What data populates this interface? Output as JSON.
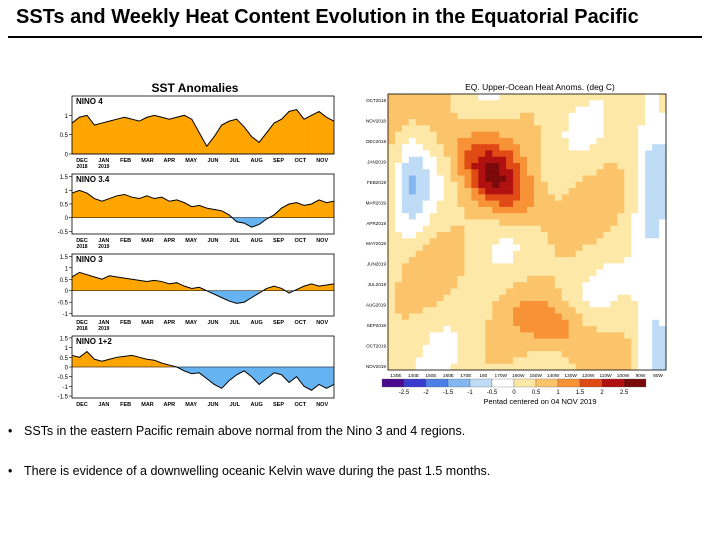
{
  "title": "SSTs and Weekly Heat Content Evolution in the Equatorial Pacific",
  "bullets": [
    "SSTs in the eastern Pacific remain above normal from the Nino 3 and 4 regions.",
    "There is evidence of a downwelling oceanic Kelvin wave during the past 1.5 months."
  ],
  "bullet_symbol": "•",
  "colors": {
    "positive_fill": "#ffa500",
    "negative_fill": "#66b3f2",
    "line": "#000000"
  },
  "chart_data": [
    {
      "type": "area",
      "title": "SST Anomalies",
      "months": [
        "DEC",
        "JAN",
        "FEB",
        "MAR",
        "APR",
        "MAY",
        "JUN",
        "JUL",
        "AUG",
        "SEP",
        "OCT",
        "NOV"
      ],
      "years": [
        "2018",
        "2019"
      ],
      "panels": [
        {
          "name": "NINO 4",
          "yticks": [
            "1",
            "0.5",
            "0"
          ],
          "ylim": [
            0,
            1.5
          ],
          "ytick_values": [
            1,
            0.5,
            0
          ],
          "values": [
            0.8,
            0.95,
            1.0,
            0.75,
            0.8,
            0.85,
            0.9,
            0.95,
            0.9,
            0.85,
            0.95,
            1.0,
            0.95,
            0.9,
            0.95,
            1.0,
            0.9,
            0.55,
            0.2,
            0.45,
            0.75,
            0.85,
            0.9,
            0.7,
            0.45,
            0.3,
            0.55,
            0.8,
            0.9,
            1.1,
            1.15,
            0.9,
            1.0,
            1.1,
            0.95,
            0.85
          ]
        },
        {
          "name": "NINO 3.4",
          "yticks": [
            "1.5",
            "1",
            "0.5",
            "0",
            "-0.5"
          ],
          "ylim": [
            -0.6,
            1.6
          ],
          "ytick_values": [
            1.5,
            1,
            0.5,
            0,
            -0.5
          ],
          "values": [
            0.9,
            1.0,
            0.9,
            0.7,
            0.6,
            0.7,
            0.8,
            0.85,
            0.75,
            0.7,
            0.8,
            0.7,
            0.75,
            0.6,
            0.65,
            0.55,
            0.4,
            0.45,
            0.35,
            0.3,
            0.25,
            0.1,
            -0.15,
            -0.2,
            -0.35,
            -0.25,
            -0.05,
            0.1,
            0.35,
            0.5,
            0.55,
            0.45,
            0.5,
            0.65,
            0.55,
            0.6
          ]
        },
        {
          "name": "NINO 3",
          "yticks": [
            "1.5",
            "1",
            "0.5",
            "0",
            "-0.5",
            "-1"
          ],
          "ylim": [
            -1.1,
            1.6
          ],
          "ytick_values": [
            1.5,
            1,
            0.5,
            0,
            -0.5,
            -1
          ],
          "values": [
            0.6,
            0.8,
            0.7,
            0.6,
            0.5,
            0.65,
            0.6,
            0.55,
            0.5,
            0.45,
            0.4,
            0.45,
            0.4,
            0.3,
            0.35,
            0.2,
            0.1,
            0.15,
            0.0,
            -0.15,
            -0.3,
            -0.45,
            -0.55,
            -0.5,
            -0.3,
            -0.1,
            0.1,
            0.2,
            0.1,
            -0.1,
            0.05,
            0.2,
            0.3,
            0.2,
            0.25,
            0.3
          ]
        },
        {
          "name": "NINO 1+2",
          "yticks": [
            "1.5",
            "1",
            "0.5",
            "0",
            "-0.5",
            "-1",
            "-1.5"
          ],
          "ylim": [
            -1.6,
            1.6
          ],
          "ytick_values": [
            1.5,
            1,
            0.5,
            0,
            -0.5,
            -1,
            -1.5
          ],
          "values": [
            0.6,
            0.5,
            0.8,
            0.4,
            0.3,
            0.4,
            0.5,
            0.55,
            0.6,
            0.5,
            0.4,
            0.35,
            0.2,
            0.1,
            0.0,
            -0.2,
            -0.35,
            -0.3,
            -0.6,
            -0.9,
            -1.1,
            -0.7,
            -0.4,
            -0.2,
            -0.5,
            -0.9,
            -0.6,
            -0.3,
            -0.4,
            -0.8,
            -0.5,
            -1.0,
            -1.2,
            -0.9,
            -1.1,
            -0.9
          ]
        }
      ]
    },
    {
      "type": "heatmap",
      "title": "EQ. Upper-Ocean Heat Anoms. (deg C)",
      "time_labels": [
        "OCT2018",
        "NOV2018",
        "DEC2018",
        "JAN2019",
        "FEB2019",
        "MAR2019",
        "APR2019",
        "MAY2019",
        "JUN2019",
        "JUL2019",
        "AUG2019",
        "SEP2019",
        "OCT2019",
        "NOV2019"
      ],
      "lon_labels": [
        "130E",
        "140E",
        "150E",
        "160E",
        "170E",
        "180",
        "170W",
        "160W",
        "150W",
        "140W",
        "130W",
        "120W",
        "110W",
        "100W",
        "90W",
        "80W"
      ],
      "colorbar_ticks": [
        "-2.5",
        "-2",
        "-1.5",
        "-1",
        "-0.5",
        "0",
        "0.5",
        "1",
        "1.5",
        "2",
        "2.5"
      ],
      "colorbar_colors": [
        "#4b0a8c",
        "#3b3bd0",
        "#4c7fe6",
        "#84b6f2",
        "#bfdcf7",
        "#ffffff",
        "#fde8a8",
        "#fcc46a",
        "#f79236",
        "#e04a14",
        "#b01010",
        "#7a0a0a"
      ],
      "footer": "Pentad centered on 04 NOV 2019"
    }
  ]
}
